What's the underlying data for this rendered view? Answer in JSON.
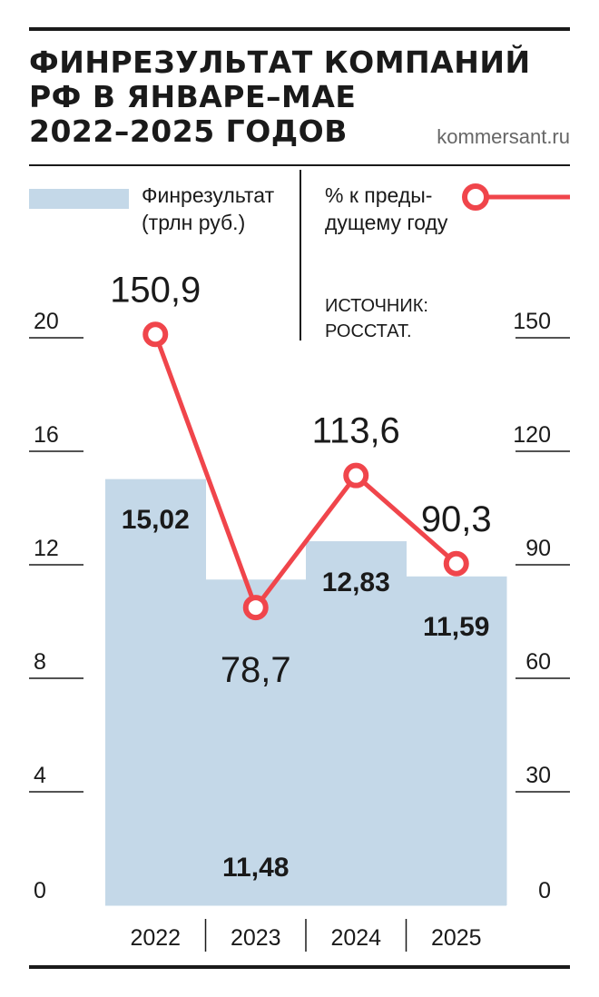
{
  "header": {
    "title_lines": [
      "ФИНРЕЗУЛЬТАТ КОМПАНИЙ",
      "РФ В ЯНВАРЕ–МАЕ",
      "2022–2025 ГОДОВ"
    ],
    "site": "kommersant.ru"
  },
  "legend": {
    "bars_label": "Финрезультат\n(трлн руб.)",
    "line_label": "% к преды-\nдущему году"
  },
  "source": "ИСТОЧНИК:\nРОССТАТ.",
  "colors": {
    "bar": "#c4d8e8",
    "line": "#f0454b",
    "text": "#1a1a1a"
  },
  "chart_data": {
    "type": "bar",
    "categories": [
      "2022",
      "2023",
      "2024",
      "2025"
    ],
    "series": [
      {
        "name": "Финрезультат (трлн руб.)",
        "type": "bar",
        "axis": "left",
        "values": [
          15.02,
          11.48,
          12.83,
          11.59
        ],
        "labels": [
          "15,02",
          "11,48",
          "12,83",
          "11,59"
        ]
      },
      {
        "name": "% к предыдущему году",
        "type": "line",
        "axis": "right",
        "values": [
          150.9,
          78.7,
          113.6,
          90.3
        ],
        "labels": [
          "150,9",
          "78,7",
          "113,6",
          "90,3"
        ]
      }
    ],
    "left_axis": {
      "ylim": [
        0,
        20
      ],
      "ticks": [
        "0",
        "4",
        "8",
        "12",
        "16",
        "20"
      ]
    },
    "right_axis": {
      "ylim": [
        0,
        150
      ],
      "ticks": [
        "0",
        "30",
        "60",
        "90",
        "120",
        "150"
      ]
    }
  }
}
